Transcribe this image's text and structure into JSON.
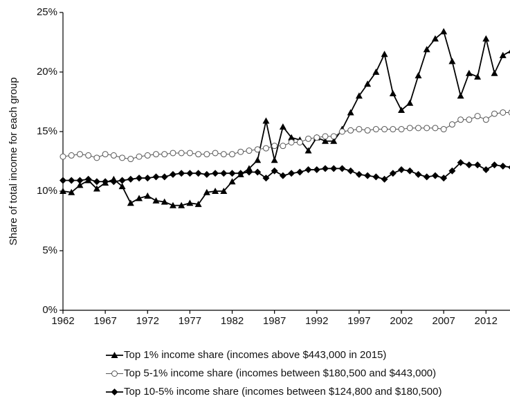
{
  "chart_data": {
    "type": "line",
    "y_label": "Share of total income for each group",
    "x": [
      1962,
      1963,
      1964,
      1965,
      1966,
      1967,
      1968,
      1969,
      1970,
      1971,
      1972,
      1973,
      1974,
      1975,
      1976,
      1977,
      1978,
      1979,
      1980,
      1981,
      1982,
      1983,
      1984,
      1985,
      1986,
      1987,
      1988,
      1989,
      1990,
      1991,
      1992,
      1993,
      1994,
      1995,
      1996,
      1997,
      1998,
      1999,
      2000,
      2001,
      2002,
      2003,
      2004,
      2005,
      2006,
      2007,
      2008,
      2009,
      2010,
      2011,
      2012,
      2013,
      2014,
      2015
    ],
    "xlim": [
      1962,
      2015
    ],
    "xticks": [
      1962,
      1967,
      1972,
      1977,
      1982,
      1987,
      1992,
      1997,
      2002,
      2007,
      2012
    ],
    "ylim": [
      0,
      25
    ],
    "yticks": [
      {
        "value": 0,
        "label": "0%"
      },
      {
        "value": 5,
        "label": "5%"
      },
      {
        "value": 10,
        "label": "10%"
      },
      {
        "value": 15,
        "label": "15%"
      },
      {
        "value": 20,
        "label": "20%"
      },
      {
        "value": 25,
        "label": "25%"
      }
    ],
    "grid": false,
    "legend": "bottom",
    "series": [
      {
        "name": "Top 1% income share (incomes above $443,000 in 2015)",
        "color": "#000000",
        "marker": "triangle",
        "values": [
          10.0,
          9.9,
          10.5,
          10.9,
          10.2,
          10.7,
          11.0,
          10.4,
          9.0,
          9.4,
          9.6,
          9.2,
          9.1,
          8.8,
          8.8,
          9.0,
          8.9,
          9.9,
          10.0,
          10.0,
          10.8,
          11.4,
          11.9,
          12.6,
          15.9,
          12.6,
          15.4,
          14.5,
          14.3,
          13.4,
          14.5,
          14.2,
          14.2,
          15.2,
          16.6,
          18.0,
          19.0,
          20.0,
          21.5,
          18.2,
          16.8,
          17.4,
          19.7,
          21.9,
          22.8,
          23.4,
          20.9,
          18.0,
          19.9,
          19.6,
          22.8,
          19.9,
          21.4,
          21.8
        ]
      },
      {
        "name": "Top 5-1% income share (incomes between $180,500 and $443,000)",
        "color": "#555555",
        "marker": "open-circle",
        "values": [
          12.9,
          13.0,
          13.1,
          13.0,
          12.8,
          13.1,
          13.0,
          12.8,
          12.7,
          12.9,
          13.0,
          13.1,
          13.1,
          13.2,
          13.2,
          13.2,
          13.1,
          13.1,
          13.2,
          13.1,
          13.1,
          13.3,
          13.4,
          13.5,
          13.6,
          13.8,
          13.8,
          14.1,
          14.1,
          14.4,
          14.5,
          14.6,
          14.6,
          15.0,
          15.1,
          15.2,
          15.1,
          15.2,
          15.2,
          15.2,
          15.2,
          15.3,
          15.3,
          15.3,
          15.3,
          15.2,
          15.6,
          16.0,
          16.0,
          16.3,
          16.0,
          16.5,
          16.6,
          16.6
        ]
      },
      {
        "name": "Top 10-5% income share (incomes between $124,800 and $180,500)",
        "color": "#000000",
        "marker": "diamond",
        "values": [
          10.9,
          10.9,
          10.9,
          11.0,
          10.8,
          10.8,
          10.8,
          10.9,
          11.0,
          11.1,
          11.1,
          11.2,
          11.2,
          11.4,
          11.5,
          11.5,
          11.5,
          11.4,
          11.5,
          11.5,
          11.5,
          11.5,
          11.6,
          11.6,
          11.1,
          11.7,
          11.3,
          11.5,
          11.6,
          11.8,
          11.8,
          11.9,
          11.9,
          11.9,
          11.7,
          11.4,
          11.3,
          11.2,
          11.0,
          11.5,
          11.8,
          11.7,
          11.4,
          11.2,
          11.3,
          11.1,
          11.7,
          12.4,
          12.2,
          12.2,
          11.8,
          12.2,
          12.1,
          12.0
        ]
      }
    ]
  }
}
